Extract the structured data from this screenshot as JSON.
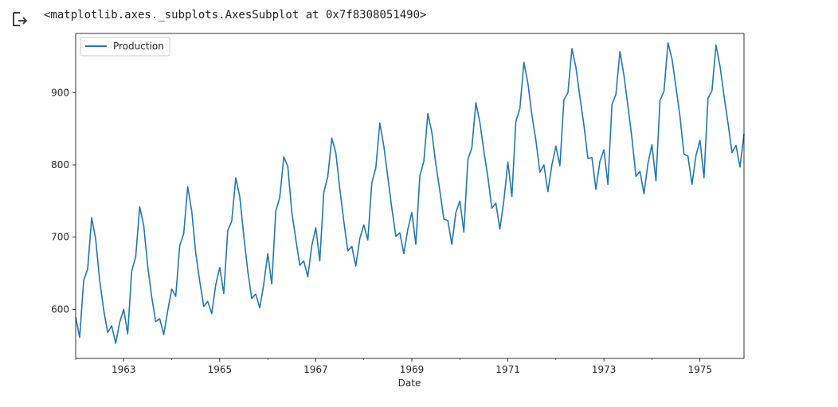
{
  "output": {
    "icon": "output-redirect-icon",
    "text": "<matplotlib.axes._subplots.AxesSubplot at 0x7f8308051490>"
  },
  "chart_data": {
    "type": "line",
    "title": "",
    "xlabel": "Date",
    "ylabel": "",
    "xlim": [
      1962.0,
      1975.9167
    ],
    "ylim": [
      532,
      982
    ],
    "grid": false,
    "legend": "top-left",
    "x_ticks": [
      1963,
      1965,
      1967,
      1969,
      1971,
      1973,
      1975
    ],
    "x_tick_labels": [
      "1963",
      "1965",
      "1967",
      "1969",
      "1971",
      "1973",
      "1975"
    ],
    "y_ticks": [
      600,
      700,
      800,
      900
    ],
    "y_tick_labels": [
      "600",
      "700",
      "800",
      "900"
    ],
    "x_start": "1962-01",
    "x_step": "month",
    "series": [
      {
        "name": "Production",
        "color": "#1f77b4",
        "values": [
          589,
          561,
          640,
          656,
          727,
          697,
          640,
          599,
          568,
          577,
          553,
          582,
          600,
          566,
          653,
          673,
          742,
          716,
          660,
          617,
          583,
          587,
          565,
          598,
          628,
          618,
          688,
          705,
          770,
          736,
          678,
          639,
          604,
          611,
          594,
          634,
          658,
          622,
          709,
          722,
          782,
          756,
          702,
          653,
          615,
          621,
          602,
          635,
          677,
          635,
          736,
          755,
          811,
          798,
          735,
          697,
          661,
          667,
          645,
          688,
          713,
          667,
          762,
          784,
          837,
          817,
          767,
          722,
          681,
          687,
          660,
          698,
          717,
          696,
          775,
          796,
          858,
          826,
          783,
          740,
          701,
          706,
          677,
          711,
          734,
          690,
          785,
          805,
          871,
          845,
          801,
          764,
          725,
          723,
          690,
          734,
          750,
          707,
          807,
          824,
          886,
          859,
          819,
          783,
          740,
          747,
          711,
          751,
          804,
          756,
          860,
          878,
          942,
          913,
          869,
          834,
          790,
          800,
          763,
          800,
          826,
          799,
          890,
          900,
          961,
          935,
          894,
          855,
          809,
          810,
          766,
          805,
          821,
          773,
          883,
          898,
          957,
          924,
          881,
          837,
          784,
          791,
          760,
          802,
          828,
          778,
          889,
          902,
          969,
          947,
          908,
          867,
          815,
          812,
          773,
          813,
          834,
          782,
          892,
          903,
          966,
          937,
          896,
          858,
          817,
          827,
          797,
          843
        ]
      }
    ]
  }
}
